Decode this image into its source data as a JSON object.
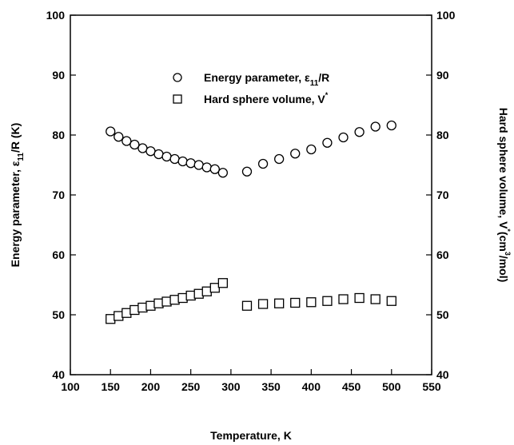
{
  "chart_data": {
    "type": "scatter",
    "x_axis": {
      "label": "Temperature, K",
      "range": [
        100,
        550
      ],
      "ticks": [
        100,
        150,
        200,
        250,
        300,
        350,
        400,
        450,
        500,
        550
      ]
    },
    "y_axis_left": {
      "label_parts": [
        "Energy parameter, ε",
        "11",
        "/R (K)"
      ],
      "range": [
        40,
        100
      ],
      "ticks": [
        40,
        50,
        60,
        70,
        80,
        90,
        100
      ]
    },
    "y_axis_right": {
      "label_parts": [
        "Hard sphere volume, V",
        "*",
        "(cm",
        "3",
        "/mol)"
      ],
      "range": [
        40,
        100
      ],
      "ticks": [
        40,
        50,
        60,
        70,
        80,
        90,
        100
      ]
    },
    "grid": false,
    "legend_position": "top-center",
    "series": [
      {
        "name_parts": [
          "Energy parameter, ε",
          "11",
          "/R"
        ],
        "marker": "circle",
        "x": [
          150,
          160,
          170,
          180,
          190,
          200,
          210,
          220,
          230,
          240,
          250,
          260,
          270,
          280,
          290,
          320,
          340,
          360,
          380,
          400,
          420,
          440,
          460,
          480,
          500
        ],
        "y": [
          80.6,
          79.7,
          79.0,
          78.4,
          77.8,
          77.3,
          76.8,
          76.4,
          76.0,
          75.6,
          75.3,
          75.0,
          74.6,
          74.3,
          73.7,
          73.9,
          75.2,
          76.0,
          76.9,
          77.6,
          78.7,
          79.6,
          80.5,
          81.4,
          81.6
        ]
      },
      {
        "name_parts": [
          "Hard sphere volume, V",
          "*"
        ],
        "marker": "square",
        "x": [
          150,
          160,
          170,
          180,
          190,
          200,
          210,
          220,
          230,
          240,
          250,
          260,
          270,
          280,
          290,
          320,
          340,
          360,
          380,
          400,
          420,
          440,
          460,
          480,
          500
        ],
        "y": [
          49.3,
          49.8,
          50.3,
          50.8,
          51.2,
          51.5,
          51.9,
          52.2,
          52.5,
          52.8,
          53.2,
          53.5,
          53.9,
          54.5,
          55.3,
          51.5,
          51.8,
          51.9,
          52.0,
          52.1,
          52.3,
          52.6,
          52.8,
          52.6,
          52.3
        ]
      }
    ]
  }
}
